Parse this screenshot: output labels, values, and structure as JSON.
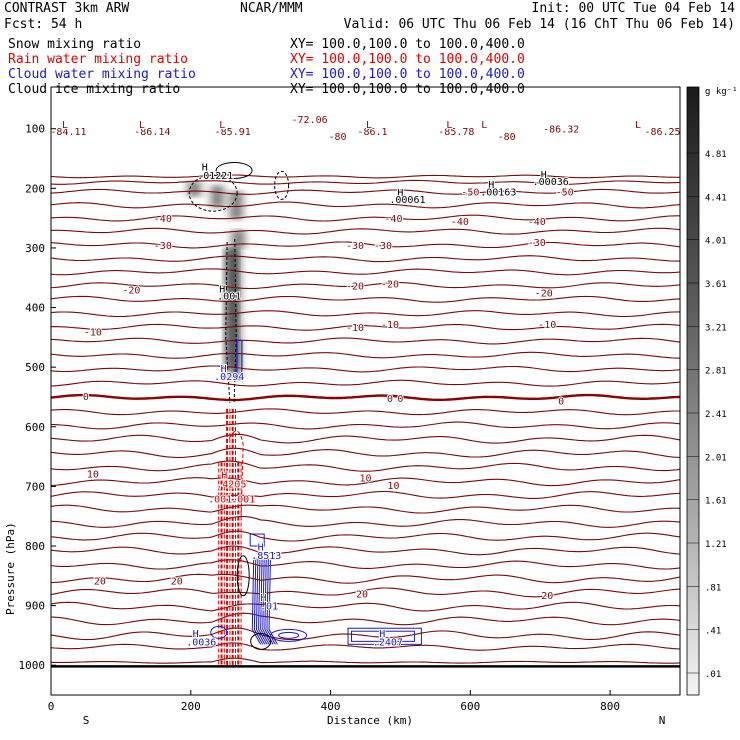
{
  "header": {
    "model": "CONTRAST  3km ARW",
    "org": "NCAR/MMM",
    "init": "Init: 00 UTC Tue 04 Feb 14",
    "fcst": "Fcst:   54 h",
    "valid": "Valid: 06 UTC Thu 06 Feb 14 (16 ChT Thu 06 Feb 14)"
  },
  "legend": [
    {
      "name": "Snow mixing ratio",
      "xy": "XY= 100.0,100.0 to 100.0,400.0",
      "color": "#000000"
    },
    {
      "name": "Rain water mixing ratio",
      "xy": "XY= 100.0,100.0 to 100.0,400.0",
      "color": "#e00000"
    },
    {
      "name": "Cloud water mixing ratio",
      "xy": "XY= 100.0,100.0 to 100.0,400.0",
      "color": "#1a1acc"
    },
    {
      "name": "Cloud ice mixing ratio",
      "xy": "XY= 100.0,100.0 to 100.0,400.0",
      "color": "#000000"
    }
  ],
  "chart_data": {
    "type": "cross-section",
    "xlabel": "Distance (km)",
    "ylabel": "Pressure (hPa)",
    "xlim": [
      0,
      900
    ],
    "ylim": [
      1050,
      30
    ],
    "xticks": [
      0,
      200,
      400,
      600,
      800
    ],
    "yticks": [
      100,
      200,
      300,
      400,
      500,
      600,
      700,
      800,
      900,
      1000
    ],
    "direction_labels": {
      "left": "S",
      "right": "N"
    },
    "colorbar": {
      "unit": "g kg⁻¹",
      "labels": [
        "4.81",
        "4.41",
        "4.01",
        "3.61",
        "3.21",
        "2.81",
        "2.41",
        "2.01",
        "1.61",
        "1.21",
        ".81",
        ".41",
        ".01"
      ]
    },
    "temperature_isotherms": {
      "color": "#7a0a0a",
      "zero_color": "#8b0000",
      "levels": [
        {
          "p": 180,
          "amp": 1.5
        },
        {
          "p": 190,
          "amp": 2
        },
        {
          "p": 206,
          "amp": 2.5
        },
        {
          "p": 228,
          "amp": 3
        },
        {
          "p": 250,
          "amp": 3
        },
        {
          "p": 272,
          "amp": 3
        },
        {
          "p": 295,
          "amp": 3
        },
        {
          "p": 318,
          "amp": 3
        },
        {
          "p": 340,
          "amp": 3
        },
        {
          "p": 363,
          "amp": 3
        },
        {
          "p": 386,
          "amp": 3
        },
        {
          "p": 410,
          "amp": 3
        },
        {
          "p": 433,
          "amp": 3
        },
        {
          "p": 456,
          "amp": 3
        },
        {
          "p": 480,
          "amp": 3
        },
        {
          "p": 503,
          "amp": 3
        },
        {
          "p": 527,
          "amp": 3
        },
        {
          "p": 551,
          "amp": 2.5
        },
        {
          "p": 575,
          "amp": 3
        },
        {
          "p": 598,
          "amp": 3.5
        },
        {
          "p": 621,
          "amp": 4
        },
        {
          "p": 645,
          "amp": 4
        },
        {
          "p": 668,
          "amp": 4
        },
        {
          "p": 692,
          "amp": 4
        },
        {
          "p": 715,
          "amp": 4
        },
        {
          "p": 738,
          "amp": 4
        },
        {
          "p": 762,
          "amp": 4
        },
        {
          "p": 785,
          "amp": 4
        },
        {
          "p": 808,
          "amp": 4
        },
        {
          "p": 832,
          "amp": 4
        },
        {
          "p": 855,
          "amp": 4.5
        },
        {
          "p": 878,
          "amp": 4.5
        },
        {
          "p": 902,
          "amp": 4.5
        },
        {
          "p": 925,
          "amp": 4.5
        },
        {
          "p": 950,
          "amp": 4.5
        },
        {
          "p": 970,
          "amp": 3
        },
        {
          "p": 995,
          "amp": 1
        }
      ],
      "labels": [
        {
          "text": "-84.11",
          "x": -5,
          "p": 104
        },
        {
          "text": "-86.14",
          "x": 115,
          "p": 104
        },
        {
          "text": "-85.91",
          "x": 230,
          "p": 104
        },
        {
          "text": "-72.06",
          "x": 340,
          "p": 84
        },
        {
          "text": "-80",
          "x": 380,
          "p": 112
        },
        {
          "text": "-86.1",
          "x": 430,
          "p": 104
        },
        {
          "text": "-85.78",
          "x": 550,
          "p": 104
        },
        {
          "text": "-80",
          "x": 622,
          "p": 112
        },
        {
          "text": "-86.32",
          "x": 700,
          "p": 100
        },
        {
          "text": "-86.25",
          "x": 845,
          "p": 104
        },
        {
          "text": "-50",
          "x": 570,
          "p": 205
        },
        {
          "text": "-50",
          "x": 705,
          "p": 205
        },
        {
          "text": "-40",
          "x": 130,
          "p": 250
        },
        {
          "text": "-40",
          "x": 460,
          "p": 250
        },
        {
          "text": "-40",
          "x": 555,
          "p": 255
        },
        {
          "text": "-40",
          "x": 665,
          "p": 255
        },
        {
          "text": "-30",
          "x": 130,
          "p": 295
        },
        {
          "text": "-30",
          "x": 405,
          "p": 295
        },
        {
          "text": "-30",
          "x": 445,
          "p": 295
        },
        {
          "text": "-30",
          "x": 665,
          "p": 290
        },
        {
          "text": "-20",
          "x": 85,
          "p": 370
        },
        {
          "text": "-20",
          "x": 405,
          "p": 363
        },
        {
          "text": "-20",
          "x": 455,
          "p": 360
        },
        {
          "text": "-20",
          "x": 675,
          "p": 375
        },
        {
          "text": "-10",
          "x": 30,
          "p": 440
        },
        {
          "text": "-10",
          "x": 405,
          "p": 433
        },
        {
          "text": "-10",
          "x": 455,
          "p": 428
        },
        {
          "text": "-10",
          "x": 680,
          "p": 428
        },
        {
          "text": "0",
          "x": 20,
          "p": 548
        },
        {
          "text": "0",
          "x": 455,
          "p": 552
        },
        {
          "text": "0",
          "x": 470,
          "p": 552
        },
        {
          "text": "0",
          "x": 700,
          "p": 556
        },
        {
          "text": "10",
          "x": 30,
          "p": 678
        },
        {
          "text": "10",
          "x": 420,
          "p": 685
        },
        {
          "text": "10",
          "x": 460,
          "p": 698
        },
        {
          "text": "20",
          "x": 40,
          "p": 858
        },
        {
          "text": "20",
          "x": 150,
          "p": 858
        },
        {
          "text": "20",
          "x": 415,
          "p": 880
        },
        {
          "text": "20",
          "x": 680,
          "p": 882
        }
      ],
      "maxima_minima": [
        {
          "text": "L",
          "x": 20,
          "p": 92
        },
        {
          "text": "L",
          "x": 130,
          "p": 92
        },
        {
          "text": "L",
          "x": 245,
          "p": 92
        },
        {
          "text": "L",
          "x": 455,
          "p": 92
        },
        {
          "text": "L",
          "x": 570,
          "p": 92
        },
        {
          "text": "L",
          "x": 620,
          "p": 92
        },
        {
          "text": "L",
          "x": 840,
          "p": 92
        }
      ]
    },
    "snow_mixing_ratio": {
      "color": "#000000",
      "max_label": ".01221",
      "max_x": 255,
      "max_p": 183
    },
    "cloud_ice_mixing_ratio": {
      "color": "#000000",
      "labels": [
        {
          "text": ".001",
          "x": 255,
          "p": 380
        },
        {
          "text": ".00061",
          "x": 510,
          "p": 218
        },
        {
          "text": ".00163",
          "x": 640,
          "p": 205
        },
        {
          "text": ".00036",
          "x": 715,
          "p": 188
        }
      ]
    },
    "rain_water_mixing_ratio": {
      "color": "#e00000",
      "labels": [
        {
          "text": ".4205",
          "x": 258,
          "p": 695
        },
        {
          "text": ".001",
          "x": 242,
          "p": 720
        },
        {
          "text": ".001",
          "x": 275,
          "p": 720
        }
      ]
    },
    "cloud_water_mixing_ratio": {
      "color": "#1a1acc",
      "labels": [
        {
          "text": ".0294",
          "x": 255,
          "p": 515
        },
        {
          "text": ".8513",
          "x": 308,
          "p": 815
        },
        {
          "text": ".01",
          "x": 312,
          "p": 900
        },
        {
          "text": ".0036",
          "x": 215,
          "p": 960
        },
        {
          "text": ".2407",
          "x": 482,
          "p": 960
        }
      ]
    },
    "surface_line_p": 1002
  }
}
